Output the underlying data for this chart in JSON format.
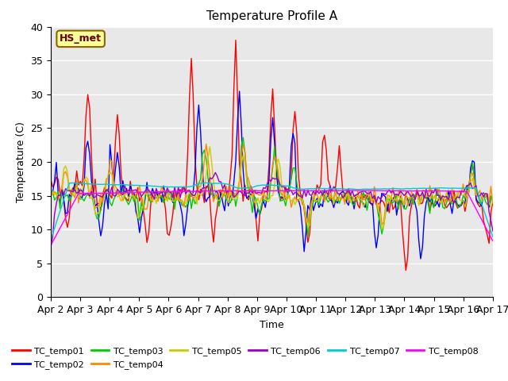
{
  "title": "Temperature Profile A",
  "xlabel": "Time",
  "ylabel": "Temperature (C)",
  "ylim": [
    0,
    40
  ],
  "xlim": [
    0,
    15
  ],
  "x_tick_labels": [
    "Apr 2",
    "Apr 3",
    "Apr 4",
    "Apr 5",
    "Apr 6",
    "Apr 7",
    "Apr 8",
    "Apr 9",
    "Apr 10",
    "Apr 11",
    "Apr 12",
    "Apr 13",
    "Apr 14",
    "Apr 15",
    "Apr 16",
    "Apr 17"
  ],
  "series_colors": [
    "#ff0000",
    "#0000ff",
    "#00cc00",
    "#ff8800",
    "#cccc00",
    "#9900cc",
    "#00cccc",
    "#ff00ff"
  ],
  "series_names": [
    "TC_temp01",
    "TC_temp02",
    "TC_temp03",
    "TC_temp04",
    "TC_temp05",
    "TC_temp06",
    "TC_temp07",
    "TC_temp08"
  ],
  "background_color": "#e8e8e8",
  "annotation_text": "HS_met",
  "annotation_bg": "#ffff99",
  "annotation_border": "#886600"
}
